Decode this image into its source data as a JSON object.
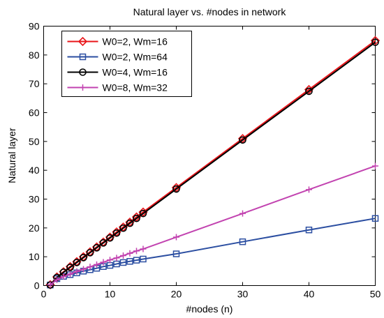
{
  "chart_data": {
    "type": "line",
    "title": "Natural layer vs. #nodes in network",
    "xlabel": "#nodes (n)",
    "ylabel": "Natural layer",
    "xlim": [
      0,
      50
    ],
    "ylim": [
      0,
      90
    ],
    "xticks": [
      0,
      10,
      20,
      30,
      40,
      50
    ],
    "yticks": [
      0,
      10,
      20,
      30,
      40,
      50,
      60,
      70,
      80,
      90
    ],
    "grid": false,
    "legend_position": "top-left",
    "x": [
      1,
      2,
      3,
      4,
      5,
      6,
      7,
      8,
      9,
      10,
      11,
      12,
      13,
      14,
      15,
      20,
      30,
      40,
      50
    ],
    "series": [
      {
        "name": "W0=2, Wm=16",
        "color": "#e8151a",
        "marker": "diamond",
        "values": [
          0.3,
          3.0,
          4.8,
          6.6,
          8.3,
          10.0,
          11.7,
          13.4,
          15.1,
          16.8,
          18.6,
          20.3,
          22.0,
          23.8,
          25.5,
          34.0,
          51.0,
          68.0,
          85.0
        ]
      },
      {
        "name": "W0=2, Wm=64",
        "color": "#2b4ea1",
        "marker": "square",
        "values": [
          0.2,
          2.4,
          3.2,
          3.8,
          4.4,
          5.0,
          5.5,
          6.0,
          6.6,
          7.0,
          7.5,
          8.0,
          8.4,
          8.8,
          9.2,
          11.0,
          15.2,
          19.3,
          23.3
        ]
      },
      {
        "name": "W0=4, Wm=16",
        "color": "#000000",
        "marker": "circle",
        "values": [
          0.2,
          2.8,
          4.6,
          6.3,
          8.0,
          9.7,
          11.4,
          13.1,
          14.8,
          16.5,
          18.2,
          19.9,
          21.6,
          23.3,
          25.0,
          33.5,
          50.5,
          67.4,
          84.4
        ]
      },
      {
        "name": "W0=8, Wm=32",
        "color": "#c243b0",
        "marker": "plus",
        "values": [
          0.3,
          2.0,
          3.1,
          4.0,
          4.9,
          5.7,
          6.5,
          7.3,
          8.1,
          8.9,
          9.6,
          10.4,
          11.2,
          12.0,
          12.7,
          16.8,
          25.0,
          33.3,
          41.5
        ]
      }
    ]
  }
}
